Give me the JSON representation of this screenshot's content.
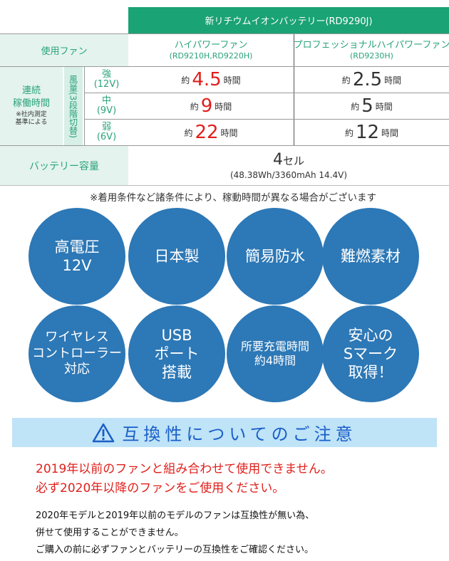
{
  "table": {
    "battery_header": "新リチウムイオンバッテリー(RD9290J)",
    "fan_label": "使用ファン",
    "fans": [
      {
        "name": "ハイパワーファン",
        "models": "(RD9210H,RD9220H)"
      },
      {
        "name": "プロフェッショナルハイパワーファン",
        "models": "(RD9230H)"
      }
    ],
    "runtime_label": "連続\n稼働時間",
    "runtime_note": "※社内測定\n基準による",
    "airflow_label": "風量(3段階切替)",
    "prefix": "約",
    "suffix": "時間",
    "levels": [
      {
        "name": "強",
        "voltage": "(12V)",
        "values": [
          "4.5",
          "2.5"
        ]
      },
      {
        "name": "中",
        "voltage": "(9V)",
        "values": [
          "9",
          "5"
        ]
      },
      {
        "name": "弱",
        "voltage": "(6V)",
        "values": [
          "22",
          "12"
        ]
      }
    ],
    "capacity_label": "バッテリー容量",
    "capacity_cells": "4",
    "capacity_unit": "セル",
    "capacity_detail": "(48.38Wh/3360mAh 14.4V)"
  },
  "note": "※着用条件など諸条件により、稼動時間が異なる場合がございます",
  "features": [
    "高電圧\n12V",
    "日本製",
    "簡易防水",
    "難燃素材",
    "ワイヤレス\nコントローラー\n対応",
    "USB\nポート\n搭載",
    "所要充電時間\n約4時間",
    "安心の\nSマーク\n取得！"
  ],
  "caution": {
    "icon": "warning-triangle-icon",
    "title": "互換性についてのご注意",
    "red_lines": [
      "2019年以前のファンと組み合わせて使用できません。",
      "必ず2020年以降のファンをご使用ください。"
    ],
    "lines": [
      "2020年モデルと2019年以前のモデルのファンは互換性が無い為、",
      "併せて使用することができません。",
      "ご購入の前に必ずファンとバッテリーの互換性をご確認ください。"
    ]
  },
  "colors": {
    "green": "#1aa374",
    "circle": "#2d78b6",
    "red": "#e0201c",
    "caution_bg": "#bfe3f7",
    "caution_text": "#1a5fc8"
  }
}
